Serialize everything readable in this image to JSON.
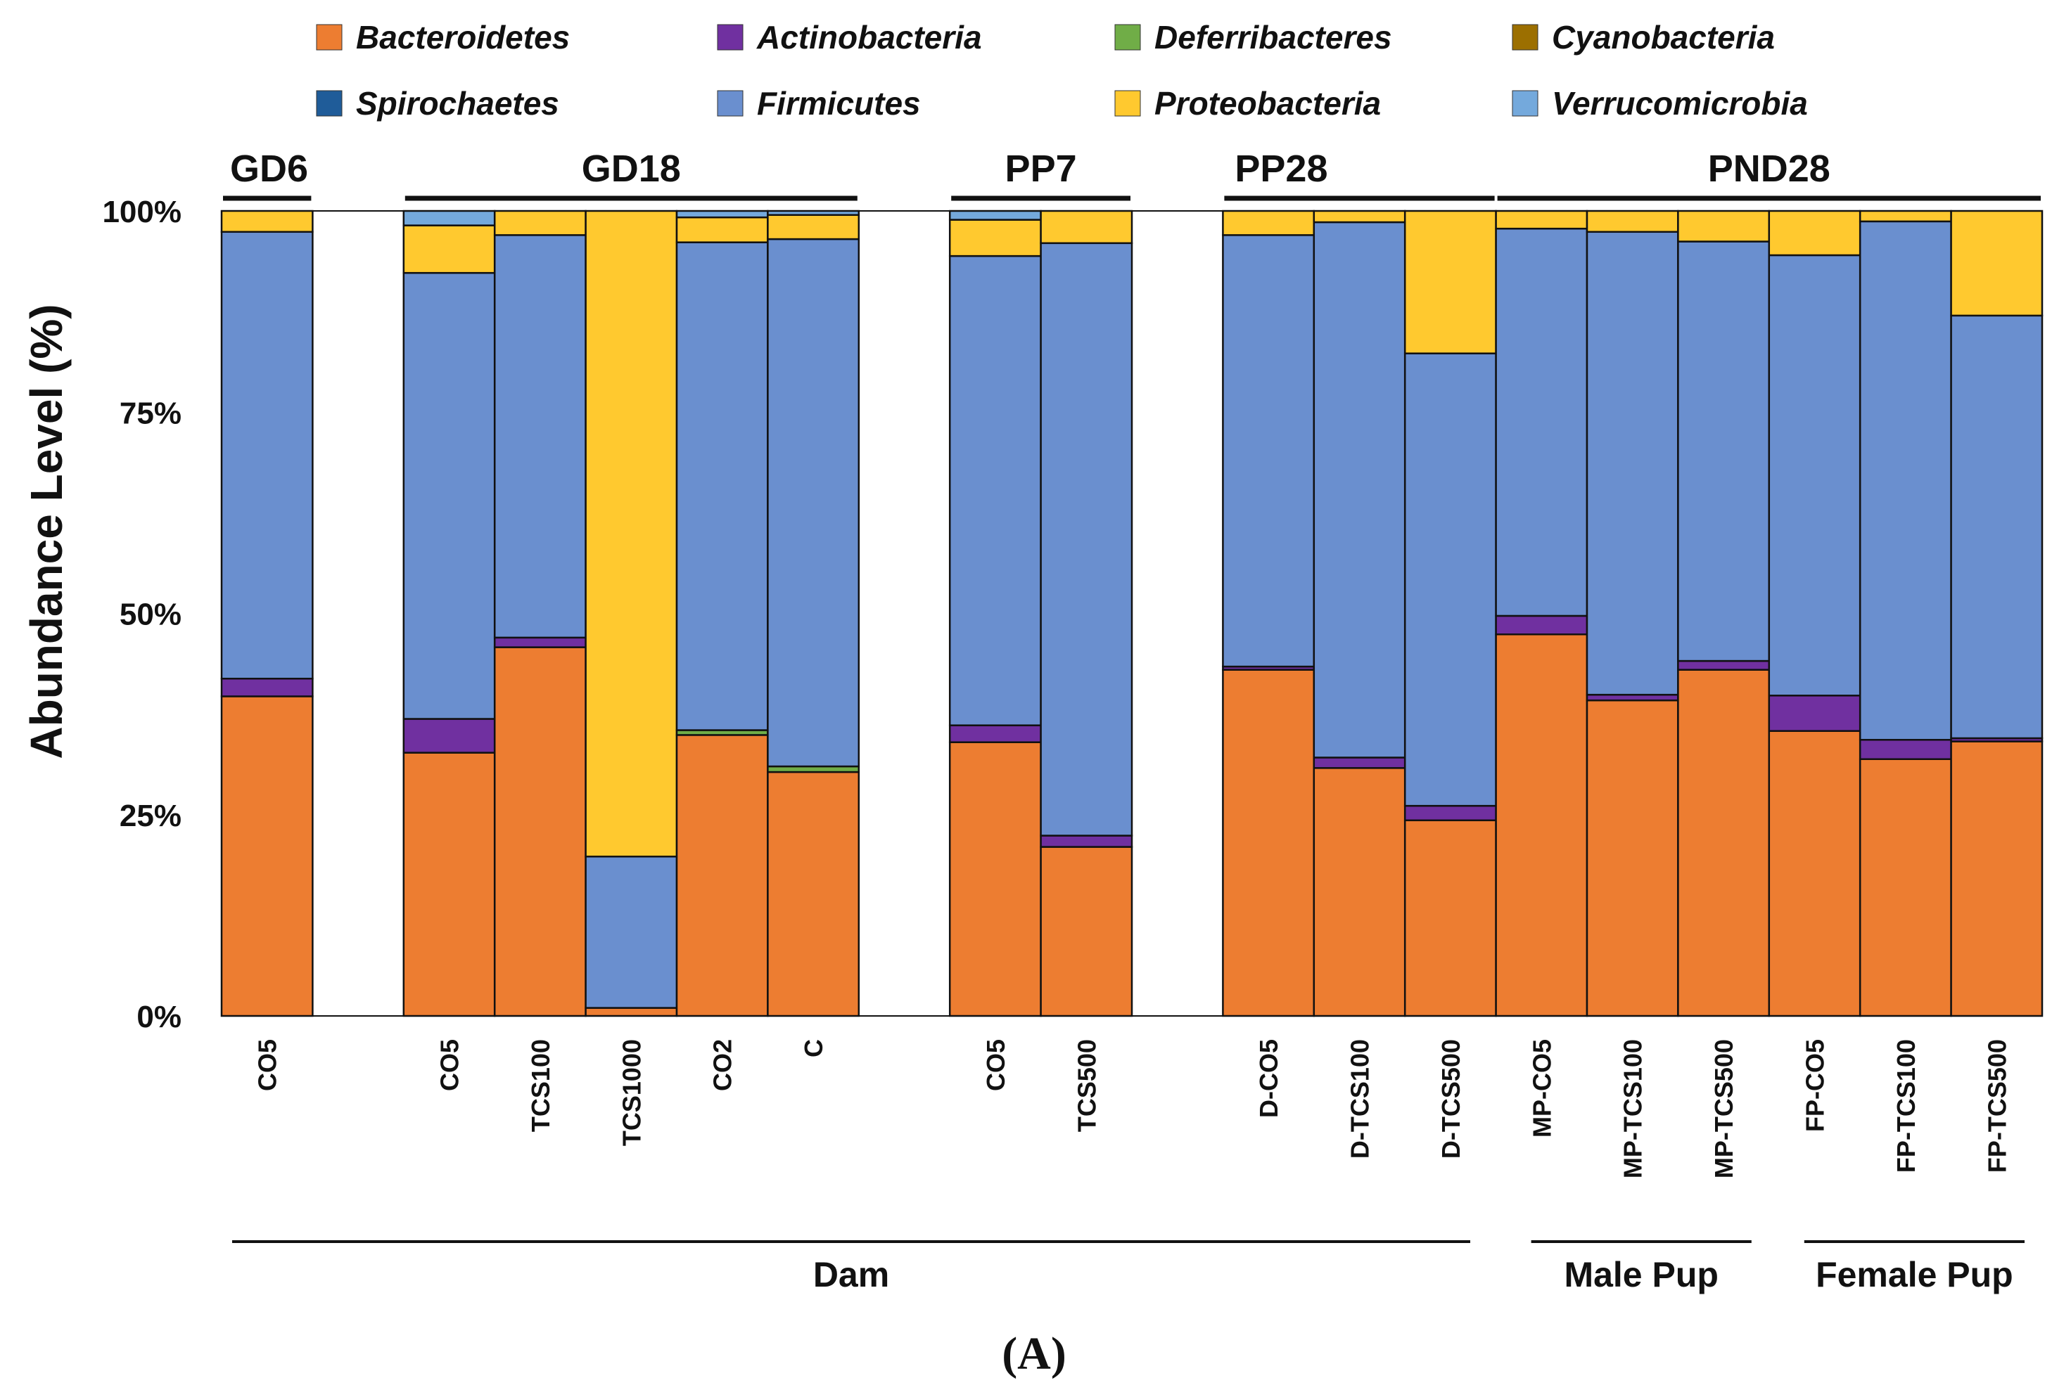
{
  "chart_data": {
    "type": "bar",
    "stacked": true,
    "ylabel": "Abundance Level (%)",
    "yticks": [
      "0%",
      "25%",
      "50%",
      "75%",
      "100%"
    ],
    "ylim": [
      0,
      100
    ],
    "panel_label": "(A)",
    "legend": [
      {
        "name": "Bacteroidetes",
        "color": "#ED7D31"
      },
      {
        "name": "Actinobacteria",
        "color": "#7030A0"
      },
      {
        "name": "Deferribacteres",
        "color": "#70AD47"
      },
      {
        "name": "Cyanobacteria",
        "color": "#9C6F00"
      },
      {
        "name": "Spirochaetes",
        "color": "#1F5C99"
      },
      {
        "name": "Firmicutes",
        "color": "#6A8FCF"
      },
      {
        "name": "Proteobacteria",
        "color": "#FFC92F"
      },
      {
        "name": "Verrucomicrobia",
        "color": "#74A9DC"
      }
    ],
    "stack_order": [
      "Bacteroidetes",
      "Actinobacteria",
      "Deferribacteres",
      "Cyanobacteria",
      "Spirochaetes",
      "Firmicutes",
      "Proteobacteria",
      "Verrucomicrobia"
    ],
    "groups": [
      {
        "label": "GD6",
        "first": 0,
        "last": 0
      },
      {
        "label": "GD18",
        "first": 2,
        "last": 6
      },
      {
        "label": "PP7",
        "first": 8,
        "last": 9
      },
      {
        "label": "PP28",
        "first": 11,
        "last": 13
      },
      {
        "label": "PND28",
        "first": 14,
        "last": 19
      }
    ],
    "sections": [
      {
        "label": "Dam",
        "first": 0,
        "last": 13
      },
      {
        "label": "Male Pup",
        "first": 14,
        "last": 16
      },
      {
        "label": "Female Pup",
        "first": 17,
        "last": 19
      }
    ],
    "bars": [
      {
        "slot": 0,
        "category": "CO5",
        "values": {
          "Bacteroidetes": 39.7,
          "Actinobacteria": 2.2,
          "Firmicutes": 55.5,
          "Proteobacteria": 2.6
        }
      },
      {
        "slot": 2,
        "category": "CO5",
        "values": {
          "Bacteroidetes": 32.7,
          "Actinobacteria": 4.2,
          "Firmicutes": 55.4,
          "Proteobacteria": 5.9,
          "Verrucomicrobia": 1.8
        }
      },
      {
        "slot": 3,
        "category": "TCS100",
        "values": {
          "Bacteroidetes": 45.8,
          "Actinobacteria": 1.2,
          "Firmicutes": 50.0,
          "Proteobacteria": 3.0
        }
      },
      {
        "slot": 4,
        "category": "TCS1000",
        "values": {
          "Bacteroidetes": 1.0,
          "Firmicutes": 18.8,
          "Proteobacteria": 80.2
        }
      },
      {
        "slot": 5,
        "category": "CO2",
        "values": {
          "Bacteroidetes": 34.9,
          "Deferribacteres": 0.6,
          "Firmicutes": 60.6,
          "Proteobacteria": 3.1,
          "Verrucomicrobia": 0.8
        }
      },
      {
        "slot": 6,
        "category": "C",
        "values": {
          "Bacteroidetes": 30.3,
          "Deferribacteres": 0.7,
          "Firmicutes": 65.5,
          "Proteobacteria": 3.0,
          "Verrucomicrobia": 0.5
        }
      },
      {
        "slot": 8,
        "category": "CO5",
        "values": {
          "Bacteroidetes": 34.0,
          "Actinobacteria": 2.1,
          "Firmicutes": 58.3,
          "Proteobacteria": 4.5,
          "Verrucomicrobia": 1.1
        }
      },
      {
        "slot": 9,
        "category": "TCS500",
        "values": {
          "Bacteroidetes": 21.0,
          "Actinobacteria": 1.4,
          "Firmicutes": 73.6,
          "Proteobacteria": 4.0
        }
      },
      {
        "slot": 11,
        "category": "D-CO5",
        "values": {
          "Bacteroidetes": 43.0,
          "Actinobacteria": 0.4,
          "Firmicutes": 53.6,
          "Proteobacteria": 3.0
        }
      },
      {
        "slot": 12,
        "category": "D-TCS100",
        "values": {
          "Bacteroidetes": 30.8,
          "Actinobacteria": 1.3,
          "Firmicutes": 66.5,
          "Proteobacteria": 1.4
        }
      },
      {
        "slot": 13,
        "category": "D-TCS500",
        "values": {
          "Bacteroidetes": 24.3,
          "Actinobacteria": 1.8,
          "Firmicutes": 56.2,
          "Proteobacteria": 17.7
        }
      },
      {
        "slot": 14,
        "category": "MP-CO5",
        "values": {
          "Bacteroidetes": 47.4,
          "Actinobacteria": 2.3,
          "Firmicutes": 48.1,
          "Proteobacteria": 2.2
        }
      },
      {
        "slot": 15,
        "category": "MP-TCS100",
        "values": {
          "Bacteroidetes": 39.2,
          "Actinobacteria": 0.7,
          "Firmicutes": 57.5,
          "Proteobacteria": 2.6
        }
      },
      {
        "slot": 16,
        "category": "MP-TCS500",
        "values": {
          "Bacteroidetes": 43.0,
          "Actinobacteria": 1.1,
          "Firmicutes": 52.1,
          "Proteobacteria": 3.8
        }
      },
      {
        "slot": 17,
        "category": "FP-CO5",
        "values": {
          "Bacteroidetes": 35.4,
          "Actinobacteria": 4.4,
          "Firmicutes": 54.7,
          "Proteobacteria": 5.5
        }
      },
      {
        "slot": 18,
        "category": "FP-TCS100",
        "values": {
          "Bacteroidetes": 31.9,
          "Actinobacteria": 2.4,
          "Firmicutes": 64.4,
          "Proteobacteria": 1.3
        }
      },
      {
        "slot": 19,
        "category": "FP-TCS500",
        "values": {
          "Bacteroidetes": 34.1,
          "Actinobacteria": 0.4,
          "Firmicutes": 52.5,
          "Proteobacteria": 13.0
        }
      }
    ]
  }
}
